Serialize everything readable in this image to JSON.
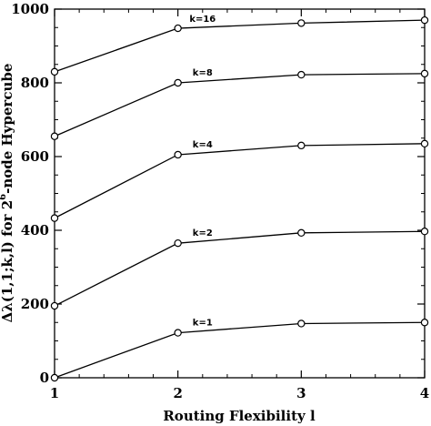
{
  "chart_data": {
    "type": "line",
    "title": "",
    "xlabel": "Routing Flexibility l",
    "ylabel_prefix": "Δλ(1,1;k,l) for 2",
    "ylabel_exp": "6",
    "ylabel_suffix": "-node Hypercube",
    "x": [
      1,
      2,
      3,
      4
    ],
    "xlim": [
      1,
      4
    ],
    "ylim": [
      0,
      1000
    ],
    "xticks": [
      1,
      2,
      3,
      4
    ],
    "yticks": [
      0,
      200,
      400,
      600,
      800,
      1000
    ],
    "xtick_labels": [
      "1",
      "2",
      "3",
      "4"
    ],
    "ytick_labels": [
      "0",
      "200",
      "400",
      "600",
      "800",
      "1000"
    ],
    "grid": false,
    "legend": "inline labels",
    "series": [
      {
        "name": "k=1",
        "values": [
          0,
          122,
          147,
          150
        ]
      },
      {
        "name": "k=2",
        "values": [
          195,
          365,
          393,
          397
        ]
      },
      {
        "name": "k=4",
        "values": [
          433,
          605,
          630,
          635
        ]
      },
      {
        "name": "k=8",
        "values": [
          655,
          800,
          822,
          825
        ]
      },
      {
        "name": "k=16",
        "values": [
          830,
          948,
          962,
          970
        ]
      }
    ]
  }
}
